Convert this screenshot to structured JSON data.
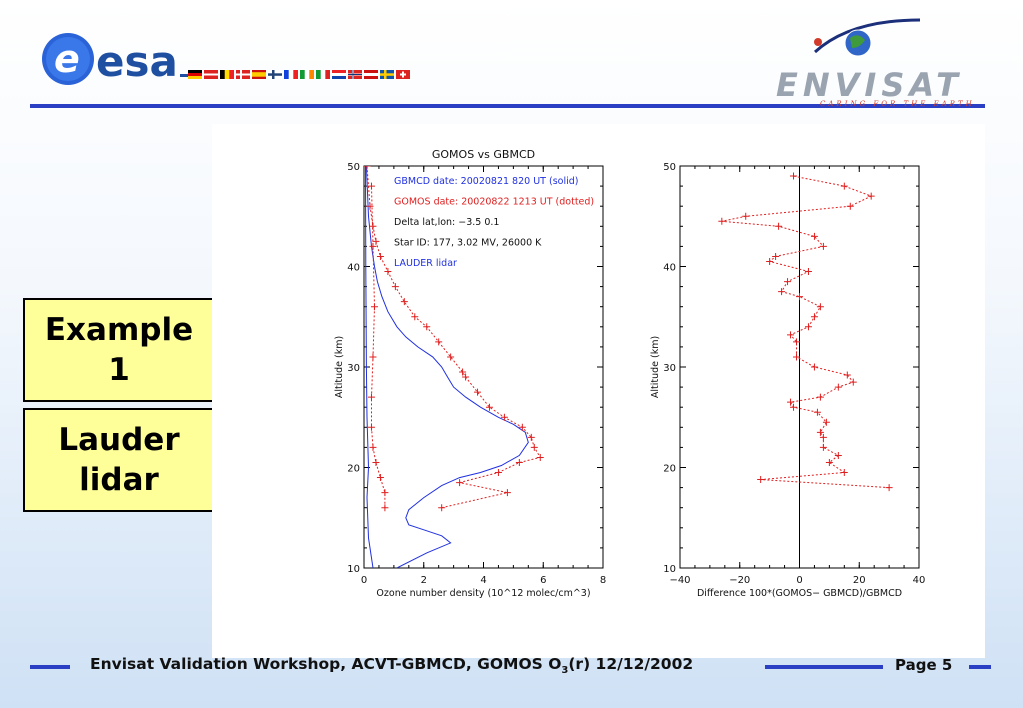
{
  "header": {
    "esa_logo_text": "esa",
    "envisat_logo_text": "ENVISAT",
    "envisat_tagline": "CARING FOR THE EARTH"
  },
  "labels": {
    "box1": [
      "Example",
      "1"
    ],
    "box2": [
      "Lauder",
      "lidar"
    ]
  },
  "footer": {
    "text_before_sub": "Envisat Validation Workshop, ACVT-GBMCD,  GOMOS O",
    "text_sub": "3",
    "text_after_sub": "(r) 12/12/2002",
    "page_word": "Page",
    "page_number": "5"
  },
  "colors": {
    "accent_blue": "#2b3fc4",
    "label_bg": "#ffff99",
    "gbmcd": "#2030e0",
    "gomos": "#e02020"
  },
  "chart_data": [
    {
      "type": "line",
      "title": "GOMOS vs GBMCD",
      "xlabel": "Ozone number density (10^12 molec/cm^3)",
      "ylabel": "Altitude (km)",
      "xlim": [
        0,
        8
      ],
      "ylim": [
        10,
        50
      ],
      "xticks": [
        "0",
        "2",
        "4",
        "6",
        "8"
      ],
      "yticks": [
        "10",
        "20",
        "30",
        "40",
        "50"
      ],
      "annotations": [
        {
          "text": "GBMCD  date:   20020821    820 UT  (solid)",
          "color": "#2030e0"
        },
        {
          "text": "GOMOS  date:  20020822  1213 UT  (dotted)",
          "color": "#e02020"
        },
        {
          "text": "Delta lat,lon:    −3.5    0.1",
          "color": "#111111"
        },
        {
          "text": "Star ID:  177,    3.02 MV, 26000 K",
          "color": "#111111"
        },
        {
          "text": "LAUDER   lidar",
          "color": "#2030e0"
        }
      ],
      "series": [
        {
          "name": "GBMCD",
          "style": "solid",
          "color": "#2030e0",
          "x": [
            1.1,
            2.1,
            2.9,
            2.6,
            2.0,
            1.5,
            1.4,
            1.5,
            2.0,
            2.6,
            3.2,
            3.9,
            4.6,
            5.2,
            5.5,
            5.4,
            5.0,
            4.5,
            3.9,
            3.4,
            3.0,
            2.8,
            2.6,
            2.3,
            1.8,
            1.4,
            1.1,
            0.8,
            0.6,
            0.45,
            0.35,
            0.25,
            0.15,
            0.08
          ],
          "y": [
            10,
            11.5,
            12.5,
            13.2,
            13.8,
            14.3,
            15.0,
            15.8,
            17.0,
            18.2,
            19.0,
            19.5,
            20.2,
            21.2,
            22.5,
            23.5,
            24.3,
            25.0,
            26.0,
            27.0,
            28.0,
            29.0,
            30.0,
            31.0,
            32.0,
            33.0,
            34.0,
            35.5,
            37.0,
            38.5,
            40.0,
            42.0,
            45.0,
            50.0
          ]
        },
        {
          "name": "GOMOS",
          "style": "dotted",
          "color": "#e02020",
          "x": [
            2.6,
            4.8,
            3.2,
            4.5,
            5.2,
            5.9,
            5.7,
            5.6,
            5.3,
            4.7,
            4.2,
            3.8,
            3.4,
            3.3,
            2.9,
            2.5,
            2.1,
            1.7,
            1.35,
            1.05,
            0.8,
            0.55,
            0.4,
            0.3,
            0.2,
            0.1
          ],
          "y": [
            16.0,
            17.5,
            18.5,
            19.5,
            20.5,
            21.0,
            22.0,
            23.0,
            24.0,
            25.0,
            26.0,
            27.5,
            29.0,
            29.5,
            31.0,
            32.5,
            34.0,
            35.0,
            36.5,
            38.0,
            39.5,
            41.0,
            42.5,
            44.0,
            46.0,
            50.0
          ]
        },
        {
          "name": "GBMCD error",
          "style": "solid",
          "color": "#2030e0",
          "x": [
            0.3,
            0.15,
            0.1,
            0.15,
            0.1,
            0.08,
            0.06,
            0.05
          ],
          "y": [
            10,
            13,
            17,
            20,
            25,
            30,
            40,
            50
          ]
        },
        {
          "name": "GOMOS error",
          "style": "dotted",
          "color": "#e02020",
          "x": [
            0.7,
            0.7,
            0.55,
            0.4,
            0.3,
            0.25,
            0.25,
            0.3,
            0.35,
            0.3,
            0.25
          ],
          "y": [
            16,
            17.5,
            19,
            20.5,
            22,
            24,
            27,
            31,
            36,
            42,
            48
          ]
        }
      ]
    },
    {
      "type": "line",
      "title": "",
      "xlabel": "Difference 100*(GOMOS− GBMCD)/GBMCD",
      "ylabel": "Altitude (km)",
      "xlim": [
        -40,
        40
      ],
      "ylim": [
        10,
        50
      ],
      "xticks": [
        "−40",
        "−20",
        "0",
        "20",
        "40"
      ],
      "yticks": [
        "10",
        "20",
        "30",
        "40",
        "50"
      ],
      "series": [
        {
          "name": "Difference",
          "style": "dotted",
          "color": "#e02020",
          "x": [
            30,
            -13,
            15,
            10,
            13,
            8,
            8,
            7,
            9,
            6,
            -2,
            -3,
            7,
            13,
            18,
            16,
            5,
            -1,
            -1,
            -3,
            3,
            5,
            7,
            0,
            -6,
            -4,
            3,
            -10,
            -8,
            8,
            5,
            -7,
            -26,
            -18,
            17,
            24,
            15,
            -2
          ],
          "y": [
            18.0,
            18.8,
            19.5,
            20.5,
            21.2,
            22.0,
            23.0,
            23.5,
            24.5,
            25.5,
            26.0,
            26.5,
            27.0,
            28.0,
            28.5,
            29.2,
            30.0,
            31.0,
            32.5,
            33.2,
            34.0,
            35.0,
            36.0,
            37.0,
            37.5,
            38.5,
            39.5,
            40.5,
            41.0,
            42.0,
            43.0,
            44.0,
            44.5,
            45.0,
            46.0,
            47.0,
            48.0,
            49.0
          ]
        }
      ]
    }
  ]
}
